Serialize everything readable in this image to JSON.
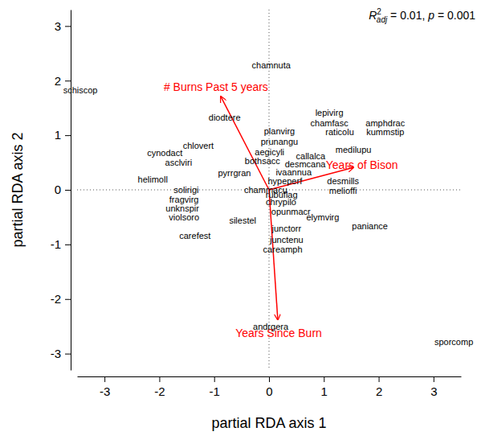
{
  "chart_data": {
    "type": "biplot",
    "xlabel": "partial RDA axis 1",
    "ylabel": "partial RDA axis 2",
    "xlim": [
      -3.5,
      3.5
    ],
    "ylim": [
      -3.3,
      3.3
    ],
    "xticks": [
      -3,
      -2,
      -1,
      0,
      1,
      2,
      3
    ],
    "yticks": [
      -3,
      -2,
      -1,
      0,
      1,
      2,
      3
    ],
    "reference_lines": [
      {
        "axis": "x",
        "value": 0,
        "line_style": "dotted"
      },
      {
        "axis": "y",
        "value": 0,
        "line_style": "dotted"
      }
    ],
    "annotation": {
      "text_parts": [
        "R",
        "2",
        "adj",
        " = 0.01, ",
        "p",
        " = 0.001"
      ]
    },
    "species": {
      "color": "#000000",
      "labels": [
        "chamnuta",
        "schiscop",
        "diodtere",
        "lepivirg",
        "chamfasc",
        "amphdrac",
        "raticolu",
        "kummstip",
        "planvirg",
        "prunangu",
        "chlovert",
        "cynodact",
        "asclviri",
        "aegicyli",
        "medilupu",
        "bothsacc",
        "callalca",
        "desmcana",
        "helimoll",
        "pyrrgran",
        "ivaannua",
        "hypeperf",
        "desmills",
        "melioffi",
        "solirigi",
        "chammacu",
        "fragvirg",
        "rubuflag",
        "unknspir",
        "chrypilo",
        "opunmacr",
        "violsoro",
        "elymvirg",
        "silestel",
        "junctorr",
        "paniance",
        "carefest",
        "junctenu",
        "careamph",
        "andrgera",
        "sporcomp"
      ],
      "x": [
        0.04,
        -3.44,
        -0.81,
        1.1,
        1.1,
        2.12,
        1.29,
        2.12,
        0.19,
        0.19,
        -1.29,
        -1.9,
        -1.65,
        0.01,
        1.54,
        -0.12,
        0.76,
        0.66,
        -2.12,
        -0.63,
        0.45,
        0.29,
        1.35,
        1.35,
        -1.51,
        -0.06,
        -1.55,
        0.23,
        -1.58,
        0.22,
        0.4,
        -1.55,
        0.98,
        -0.48,
        0.32,
        1.84,
        -1.35,
        0.32,
        0.25,
        0.03,
        3.37
      ],
      "y": [
        2.28,
        1.82,
        1.32,
        1.41,
        1.22,
        1.22,
        1.06,
        1.06,
        1.07,
        0.88,
        0.81,
        0.68,
        0.5,
        0.69,
        0.74,
        0.53,
        0.62,
        0.47,
        0.19,
        0.31,
        0.32,
        0.16,
        0.16,
        -0.01,
        0.0,
        0.0,
        -0.18,
        -0.09,
        -0.34,
        -0.22,
        -0.4,
        -0.5,
        -0.5,
        -0.56,
        -0.71,
        -0.66,
        -0.84,
        -0.91,
        -1.09,
        -2.5,
        -2.79
      ]
    },
    "vectors": {
      "color": "#ff0000",
      "labels": [
        "# Burns Past 5 years",
        "Years of Bison",
        "Years Since Burn"
      ],
      "x": [
        -0.88,
        1.54,
        0.16
      ],
      "y": [
        1.71,
        0.41,
        -2.38
      ]
    }
  }
}
